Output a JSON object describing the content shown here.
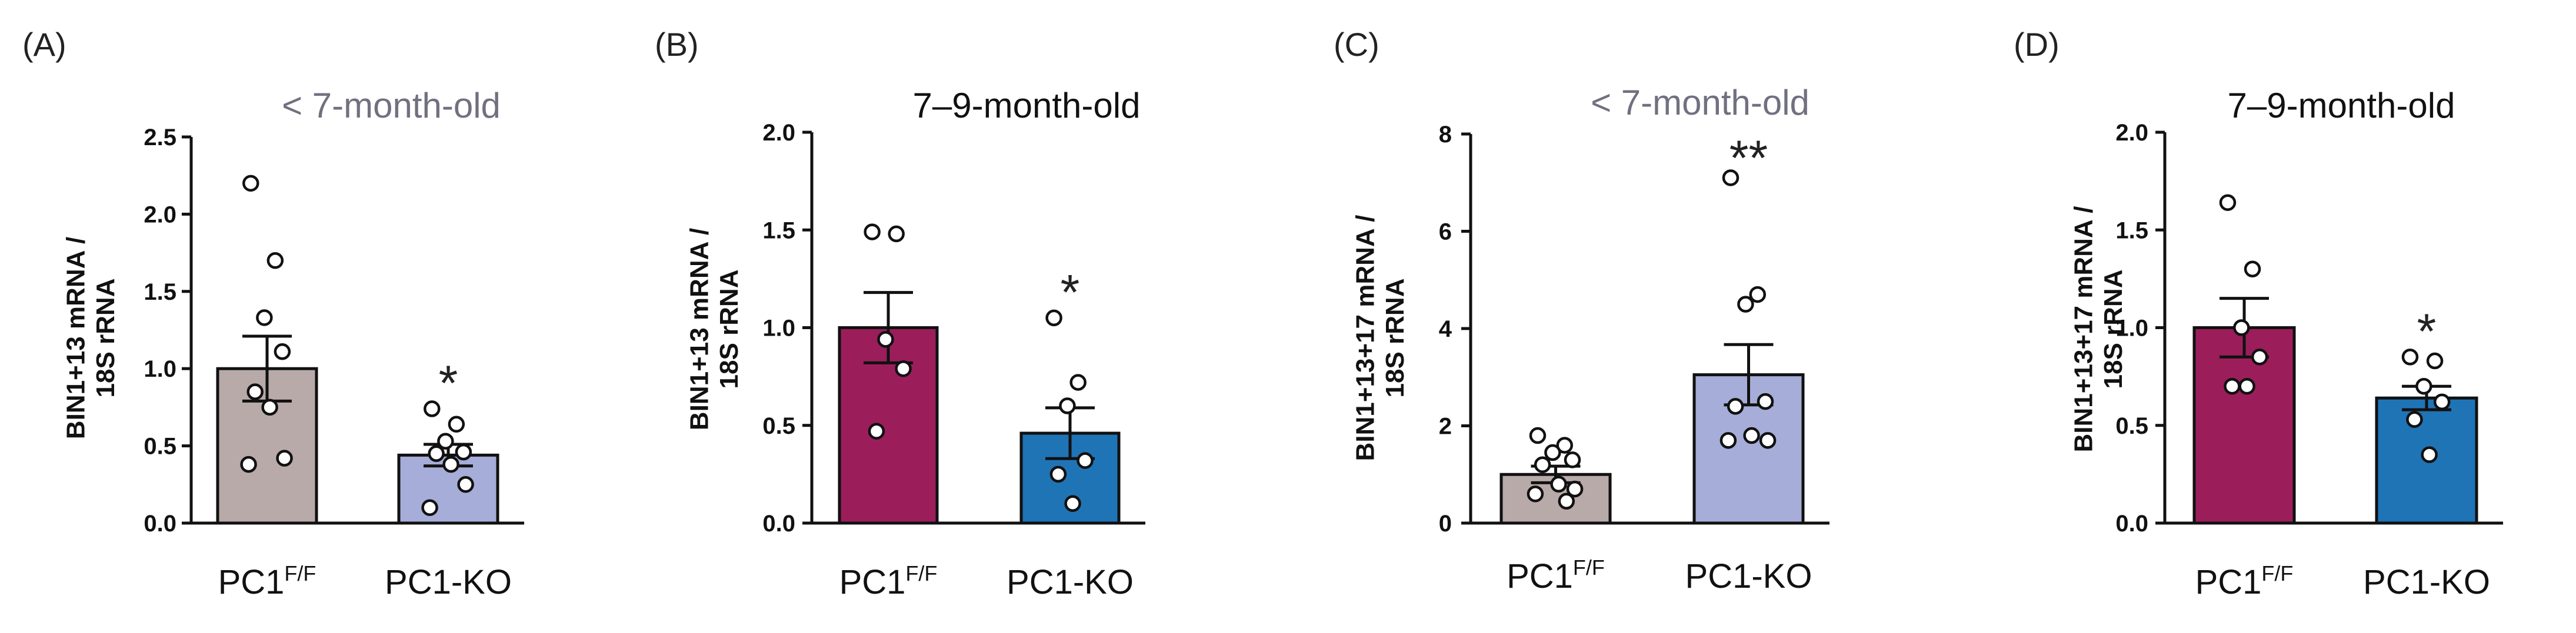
{
  "chart_data": [
    {
      "type": "bar",
      "panel": "(A)",
      "title": "< 7-month-old",
      "title_color": "#707080",
      "ylabel": [
        "BIN1+13 mRNA /",
        "18S rRNA"
      ],
      "ylim": [
        0,
        2.5
      ],
      "yticks": [
        "0.0",
        "0.5",
        "1.0",
        "1.5",
        "2.0",
        "2.5"
      ],
      "categories": [
        {
          "label": "PC1",
          "sup": "F/F",
          "value": 1.0,
          "sem": 0.21,
          "color": "#b8aaa8",
          "points": [
            2.2,
            1.7,
            1.33,
            1.11,
            0.85,
            0.75,
            0.42,
            0.38
          ]
        },
        {
          "label": "PC1-KO",
          "sup": "",
          "value": 0.44,
          "sem": 0.07,
          "color": "#a6add8",
          "points": [
            0.74,
            0.64,
            0.53,
            0.46,
            0.45,
            0.38,
            0.25,
            0.1
          ]
        }
      ],
      "significance": [
        "",
        "*"
      ]
    },
    {
      "type": "bar",
      "panel": "(B)",
      "title": "7–9-month-old",
      "title_color": "#111111",
      "ylabel": [
        "BIN1+13 mRNA /",
        "18S rRNA"
      ],
      "ylim": [
        0,
        2.0
      ],
      "yticks": [
        "0.0",
        "0.5",
        "1.0",
        "1.5",
        "2.0"
      ],
      "categories": [
        {
          "label": "PC1",
          "sup": "F/F",
          "value": 1.0,
          "sem": 0.18,
          "color": "#9b1e5b",
          "points": [
            1.49,
            1.48,
            0.94,
            0.79,
            0.47
          ]
        },
        {
          "label": "PC1-KO",
          "sup": "",
          "value": 0.46,
          "sem": 0.13,
          "color": "#1f74b6",
          "points": [
            1.05,
            0.72,
            0.6,
            0.32,
            0.25,
            0.1
          ]
        }
      ],
      "significance": [
        "",
        "*"
      ]
    },
    {
      "type": "bar",
      "panel": "(C)",
      "title": "< 7-month-old",
      "title_color": "#707080",
      "ylabel": [
        "BIN1+13+17 mRNA /",
        "18S rRNA"
      ],
      "ylim": [
        0,
        8
      ],
      "yticks": [
        "0",
        "2",
        "4",
        "6",
        "8"
      ],
      "categories": [
        {
          "label": "PC1",
          "sup": "F/F",
          "value": 1.0,
          "sem": 0.17,
          "color": "#b8aaa8",
          "points": [
            1.8,
            1.6,
            1.45,
            1.3,
            1.2,
            0.8,
            0.7,
            0.6,
            0.45
          ]
        },
        {
          "label": "PC1-KO",
          "sup": "",
          "value": 3.05,
          "sem": 0.62,
          "color": "#a6add8",
          "points": [
            7.1,
            4.7,
            4.5,
            2.5,
            2.4,
            1.8,
            1.7,
            1.7
          ]
        }
      ],
      "significance": [
        "",
        "**"
      ]
    },
    {
      "type": "bar",
      "panel": "(D)",
      "title": "7–9-month-old",
      "title_color": "#111111",
      "ylabel": [
        "BIN1+13+17 mRNA /",
        "18S rRNA"
      ],
      "ylim": [
        0,
        2.0
      ],
      "yticks": [
        "0.0",
        "0.5",
        "1.0",
        "1.5",
        "2.0"
      ],
      "categories": [
        {
          "label": "PC1",
          "sup": "F/F",
          "value": 1.0,
          "sem": 0.15,
          "color": "#9b1e5b",
          "points": [
            1.64,
            1.3,
            1.0,
            0.85,
            0.7,
            0.7
          ]
        },
        {
          "label": "PC1-KO",
          "sup": "",
          "value": 0.64,
          "sem": 0.06,
          "color": "#1f74b6",
          "points": [
            0.85,
            0.83,
            0.7,
            0.62,
            0.53,
            0.35
          ]
        }
      ],
      "significance": [
        "",
        "*"
      ]
    }
  ]
}
